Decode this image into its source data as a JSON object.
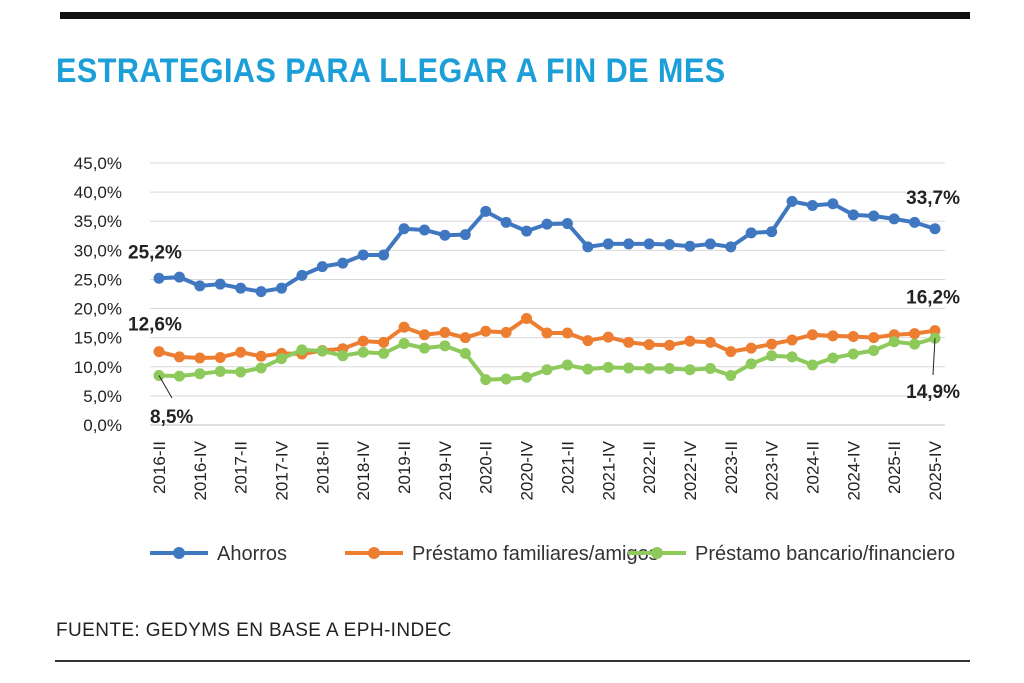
{
  "title": "ESTRATEGIAS PARA LLEGAR A FIN DE MES",
  "source": "FUENTE: GEDYMS EN BASE A EPH-INDEC",
  "colors": {
    "title": "#1c9fd8",
    "Ahorros": "#3f78c1",
    "Préstamo familiares/amigos": "#ed7d31",
    "Préstamo bancario/financiero": "#8dc95b"
  },
  "chart_data": {
    "type": "line",
    "title": "ESTRATEGIAS PARA LLEGAR A FIN DE MES",
    "xlabel": "",
    "ylabel": "",
    "ylim": [
      0,
      45
    ],
    "yticks": [
      "0,0%",
      "5,0%",
      "10,0%",
      "15,0%",
      "20,0%",
      "25,0%",
      "30,0%",
      "35,0%",
      "40,0%",
      "45,0%"
    ],
    "grid": "horizontal",
    "legend_position": "bottom",
    "x": [
      "2016-II",
      "2016-III",
      "2016-IV",
      "2017-I",
      "2017-II",
      "2017-III",
      "2017-IV",
      "2018-I",
      "2018-II",
      "2018-III",
      "2018-IV",
      "2019-I",
      "2019-II",
      "2019-III",
      "2019-IV",
      "2020-I",
      "2020-II",
      "2020-III",
      "2020-IV",
      "2021-I",
      "2021-II",
      "2021-III",
      "2021-IV",
      "2022-I",
      "2022-II",
      "2022-III",
      "2022-IV",
      "2023-I",
      "2023-II",
      "2023-III",
      "2023-IV",
      "2024-I",
      "2024-II",
      "2024-III",
      "2024-IV",
      "2025-I",
      "2025-II",
      "2025-III",
      "2025-IV"
    ],
    "xtick_labels": [
      "2016-II",
      "2016-IV",
      "2017-II",
      "2017-IV",
      "2018-II",
      "2018-IV",
      "2019-II",
      "2019-IV",
      "2020-II",
      "2020-IV",
      "2021-II",
      "2021-IV",
      "2022-II",
      "2022-IV",
      "2023-II",
      "2023-IV",
      "2024-II",
      "2024-IV",
      "2025-II",
      "2025-IV"
    ],
    "series": [
      {
        "name": "Ahorros",
        "values": [
          25.2,
          25.4,
          23.9,
          24.2,
          23.5,
          22.9,
          23.5,
          25.7,
          27.2,
          27.8,
          29.2,
          29.2,
          33.7,
          33.5,
          32.6,
          32.7,
          36.7,
          34.8,
          33.3,
          34.5,
          34.6,
          30.6,
          31.1,
          31.1,
          31.1,
          31.0,
          30.7,
          31.1,
          30.6,
          33.0,
          33.2,
          38.4,
          37.7,
          38.0,
          36.1,
          35.9,
          35.4,
          34.8,
          33.7
        ]
      },
      {
        "name": "Préstamo familiares/amigos",
        "values": [
          12.6,
          11.7,
          11.5,
          11.6,
          12.5,
          11.8,
          12.3,
          12.2,
          12.8,
          13.1,
          14.4,
          14.2,
          16.8,
          15.5,
          15.9,
          15.0,
          16.1,
          15.9,
          18.3,
          15.8,
          15.8,
          14.5,
          15.1,
          14.2,
          13.8,
          13.7,
          14.4,
          14.2,
          12.6,
          13.2,
          13.9,
          14.6,
          15.5,
          15.3,
          15.2,
          15.0,
          15.5,
          15.7,
          16.2
        ]
      },
      {
        "name": "Préstamo bancario/financiero",
        "values": [
          8.5,
          8.4,
          8.8,
          9.2,
          9.1,
          9.8,
          11.4,
          12.9,
          12.7,
          11.9,
          12.5,
          12.3,
          14.0,
          13.2,
          13.6,
          12.3,
          7.8,
          7.9,
          8.2,
          9.5,
          10.3,
          9.6,
          9.9,
          9.8,
          9.7,
          9.7,
          9.5,
          9.7,
          8.5,
          10.5,
          11.9,
          11.7,
          10.3,
          11.5,
          12.2,
          12.8,
          14.3,
          13.9,
          14.9
        ]
      }
    ],
    "annotations": {
      "ahorros_first": "25,2%",
      "ahorros_last": "33,7%",
      "familiares_first": "12,6%",
      "familiares_last": "16,2%",
      "bancario_first": "8,5%",
      "bancario_last": "14,9%"
    }
  }
}
